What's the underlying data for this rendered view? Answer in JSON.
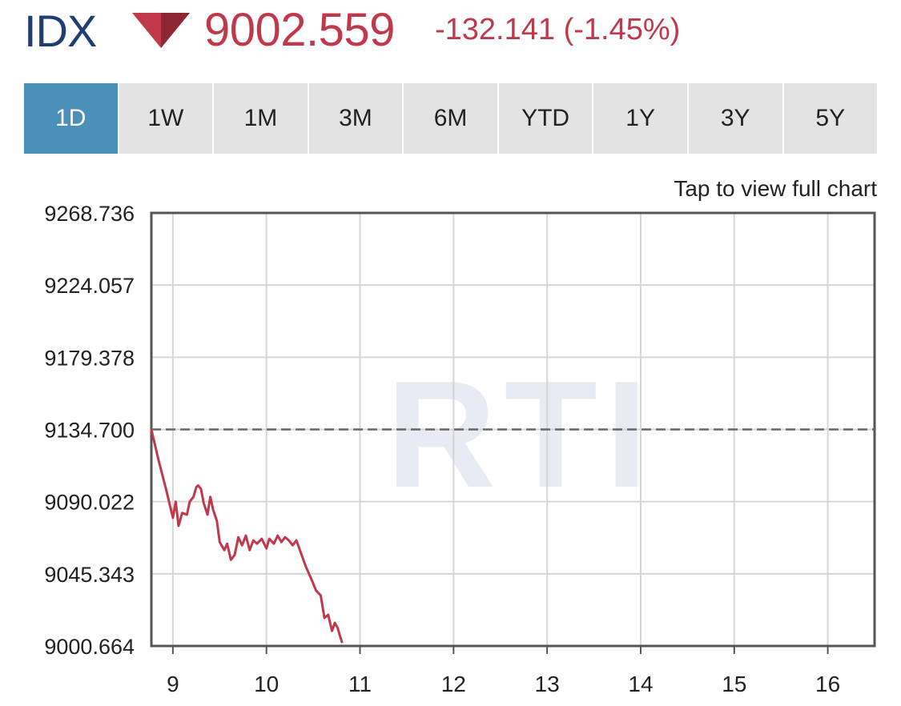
{
  "header": {
    "ticker": "IDX",
    "price": "9002.559",
    "change": "-132.141 (-1.45%)",
    "direction_icon": "triangle-down-icon",
    "color_up": "#1f3f73",
    "color_down": "#c0394b"
  },
  "tabs": [
    {
      "label": "1D",
      "active": true
    },
    {
      "label": "1W",
      "active": false
    },
    {
      "label": "1M",
      "active": false
    },
    {
      "label": "3M",
      "active": false
    },
    {
      "label": "6M",
      "active": false
    },
    {
      "label": "YTD",
      "active": false
    },
    {
      "label": "1Y",
      "active": false
    },
    {
      "label": "3Y",
      "active": false
    },
    {
      "label": "5Y",
      "active": false
    }
  ],
  "chart_note": "Tap to view full chart",
  "chart_data": {
    "type": "line",
    "title": "",
    "xlabel": "",
    "ylabel": "",
    "y_ticks": [
      "9268.736",
      "9224.057",
      "9179.378",
      "9134.700",
      "9090.022",
      "9045.343",
      "9000.664"
    ],
    "x_ticks": [
      "9",
      "10",
      "11",
      "12",
      "13",
      "14",
      "15",
      "16"
    ],
    "ylim": [
      9000.664,
      9268.736
    ],
    "xlim": [
      8.77,
      16.5
    ],
    "reference_line": {
      "value": 9134.7,
      "style": "dashed"
    },
    "grid": true,
    "watermark": "RTI",
    "series": [
      {
        "color": "#c0394b",
        "points": [
          [
            8.77,
            9134.7
          ],
          [
            8.85,
            9115
          ],
          [
            8.93,
            9097
          ],
          [
            9.0,
            9080
          ],
          [
            9.03,
            9090
          ],
          [
            9.06,
            9075
          ],
          [
            9.1,
            9083
          ],
          [
            9.15,
            9082
          ],
          [
            9.18,
            9090
          ],
          [
            9.22,
            9093
          ],
          [
            9.25,
            9099
          ],
          [
            9.27,
            9100
          ],
          [
            9.3,
            9098
          ],
          [
            9.33,
            9089
          ],
          [
            9.37,
            9082
          ],
          [
            9.4,
            9093
          ],
          [
            9.43,
            9085
          ],
          [
            9.47,
            9078
          ],
          [
            9.5,
            9065
          ],
          [
            9.55,
            9060
          ],
          [
            9.58,
            9064
          ],
          [
            9.62,
            9054
          ],
          [
            9.66,
            9057
          ],
          [
            9.7,
            9068
          ],
          [
            9.74,
            9063
          ],
          [
            9.78,
            9069
          ],
          [
            9.82,
            9060
          ],
          [
            9.86,
            9066
          ],
          [
            9.9,
            9064
          ],
          [
            9.95,
            9067
          ],
          [
            10.0,
            9061
          ],
          [
            10.03,
            9067
          ],
          [
            10.08,
            9064
          ],
          [
            10.12,
            9069
          ],
          [
            10.16,
            9065
          ],
          [
            10.2,
            9068
          ],
          [
            10.24,
            9066
          ],
          [
            10.28,
            9063
          ],
          [
            10.32,
            9066
          ],
          [
            10.37,
            9058
          ],
          [
            10.42,
            9050
          ],
          [
            10.48,
            9042
          ],
          [
            10.53,
            9035
          ],
          [
            10.58,
            9032
          ],
          [
            10.62,
            9018
          ],
          [
            10.66,
            9020
          ],
          [
            10.7,
            9010
          ],
          [
            10.73,
            9015
          ],
          [
            10.76,
            9012
          ],
          [
            10.78,
            9008
          ],
          [
            10.81,
            9002.559
          ]
        ]
      }
    ]
  }
}
